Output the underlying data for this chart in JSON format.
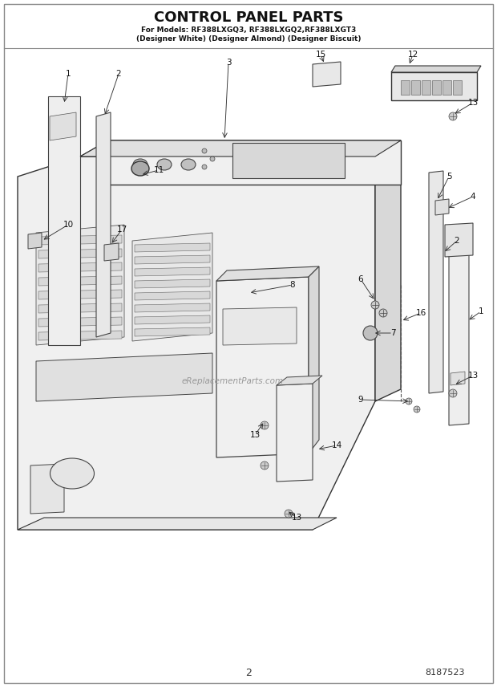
{
  "title_line1": "CONTROL PANEL PARTS",
  "title_line2": "For Models: RF388LXGQ3, RF388LXGQ2,RF388LXGT3",
  "title_line3": "(Designer White) (Designer Almond) (Designer Biscuit)",
  "page_number": "2",
  "part_number": "8187523",
  "watermark": "eReplacementParts.com",
  "bg": "#ffffff",
  "lc": "#333333",
  "tc": "#111111"
}
